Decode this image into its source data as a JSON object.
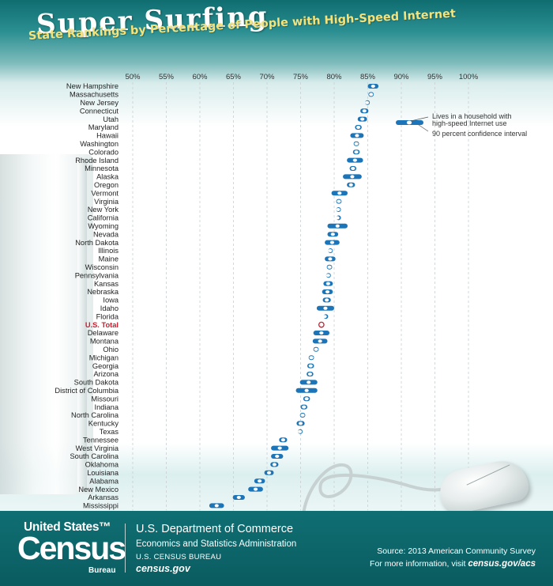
{
  "header": {
    "title": "Super Surfing",
    "subtitle": "State Rankings by Percentage of People with High-Speed Internet"
  },
  "legend": {
    "estimate_label_line1": "Lives in a household with",
    "estimate_label_line2": "high-speed Internet use",
    "ci_label": "90 percent confidence interval"
  },
  "colors": {
    "bar": "#1b75b8",
    "point_fill": "#ffffff",
    "us_total": "#c8202f",
    "state_label": "#222222",
    "gridline": "#c9cfd2",
    "footer_bg": "#0f6f73"
  },
  "chart_data": {
    "type": "scatter",
    "title": "Super Surfing",
    "subtitle": "State Rankings by Percentage of People with High-Speed Internet",
    "x_ticks": [
      "50%",
      "55%",
      "60%",
      "65%",
      "70%",
      "75%",
      "80%",
      "85%",
      "90%",
      "95%",
      "100%"
    ],
    "xlim": [
      50,
      100
    ],
    "grid": true,
    "legend_position": "top-right",
    "highlight": "U.S. Total",
    "states": [
      {
        "name": "New Hampshire",
        "value": 85.8,
        "low": 85.0,
        "high": 86.6
      },
      {
        "name": "Massachusetts",
        "value": 85.5,
        "low": 85.1,
        "high": 85.9
      },
      {
        "name": "New Jersey",
        "value": 84.9,
        "low": 84.6,
        "high": 85.2
      },
      {
        "name": "Connecticut",
        "value": 84.5,
        "low": 83.9,
        "high": 85.1
      },
      {
        "name": "Utah",
        "value": 84.2,
        "low": 83.5,
        "high": 84.9
      },
      {
        "name": "Maryland",
        "value": 83.6,
        "low": 83.1,
        "high": 84.1
      },
      {
        "name": "Hawaii",
        "value": 83.4,
        "low": 82.4,
        "high": 84.4
      },
      {
        "name": "Washington",
        "value": 83.3,
        "low": 82.9,
        "high": 83.7
      },
      {
        "name": "Colorado",
        "value": 83.3,
        "low": 82.8,
        "high": 83.8
      },
      {
        "name": "Rhode Island",
        "value": 83.1,
        "low": 81.9,
        "high": 84.3
      },
      {
        "name": "Minnesota",
        "value": 82.8,
        "low": 82.3,
        "high": 83.3
      },
      {
        "name": "Alaska",
        "value": 82.7,
        "low": 81.3,
        "high": 84.1
      },
      {
        "name": "Oregon",
        "value": 82.5,
        "low": 81.9,
        "high": 83.1
      },
      {
        "name": "Vermont",
        "value": 80.8,
        "low": 79.6,
        "high": 82.0
      },
      {
        "name": "Virginia",
        "value": 80.7,
        "low": 80.3,
        "high": 81.1
      },
      {
        "name": "New York",
        "value": 80.6,
        "low": 80.3,
        "high": 80.9
      },
      {
        "name": "California",
        "value": 80.5,
        "low": 80.3,
        "high": 80.7
      },
      {
        "name": "Wyoming",
        "value": 80.5,
        "low": 79.0,
        "high": 82.0
      },
      {
        "name": "Nevada",
        "value": 79.8,
        "low": 79.0,
        "high": 80.6
      },
      {
        "name": "North Dakota",
        "value": 79.7,
        "low": 78.6,
        "high": 80.8
      },
      {
        "name": "Illinois",
        "value": 79.4,
        "low": 79.1,
        "high": 79.7
      },
      {
        "name": "Maine",
        "value": 79.4,
        "low": 78.6,
        "high": 80.2
      },
      {
        "name": "Wisconsin",
        "value": 79.3,
        "low": 78.9,
        "high": 79.7
      },
      {
        "name": "Pennsylvania",
        "value": 79.1,
        "low": 78.8,
        "high": 79.4
      },
      {
        "name": "Kansas",
        "value": 79.1,
        "low": 78.4,
        "high": 79.8
      },
      {
        "name": "Nebraska",
        "value": 79.0,
        "low": 78.2,
        "high": 79.8
      },
      {
        "name": "Iowa",
        "value": 78.9,
        "low": 78.3,
        "high": 79.5
      },
      {
        "name": "Idaho",
        "value": 78.7,
        "low": 77.4,
        "high": 80.0
      },
      {
        "name": "Florida",
        "value": 78.6,
        "low": 78.4,
        "high": 78.8
      },
      {
        "name": "U.S. Total",
        "value": 78.1,
        "low": 78.0,
        "high": 78.2
      },
      {
        "name": "Delaware",
        "value": 78.1,
        "low": 76.9,
        "high": 79.3
      },
      {
        "name": "Montana",
        "value": 77.9,
        "low": 76.8,
        "high": 79.0
      },
      {
        "name": "Ohio",
        "value": 77.3,
        "low": 76.9,
        "high": 77.7
      },
      {
        "name": "Michigan",
        "value": 76.6,
        "low": 76.2,
        "high": 77.0
      },
      {
        "name": "Georgia",
        "value": 76.5,
        "low": 76.0,
        "high": 77.0
      },
      {
        "name": "Arizona",
        "value": 76.4,
        "low": 75.9,
        "high": 76.9
      },
      {
        "name": "South Dakota",
        "value": 76.2,
        "low": 74.9,
        "high": 77.5
      },
      {
        "name": "District of Columbia",
        "value": 75.9,
        "low": 74.3,
        "high": 77.5
      },
      {
        "name": "Missouri",
        "value": 75.9,
        "low": 75.4,
        "high": 76.4
      },
      {
        "name": "Indiana",
        "value": 75.5,
        "low": 75.0,
        "high": 76.0
      },
      {
        "name": "North Carolina",
        "value": 75.3,
        "low": 74.9,
        "high": 75.7
      },
      {
        "name": "Kentucky",
        "value": 75.0,
        "low": 74.4,
        "high": 75.6
      },
      {
        "name": "Texas",
        "value": 74.9,
        "low": 74.6,
        "high": 75.2
      },
      {
        "name": "Tennessee",
        "value": 72.4,
        "low": 71.8,
        "high": 73.0
      },
      {
        "name": "West Virginia",
        "value": 71.9,
        "low": 70.6,
        "high": 73.2
      },
      {
        "name": "South Carolina",
        "value": 71.5,
        "low": 70.6,
        "high": 72.4
      },
      {
        "name": "Oklahoma",
        "value": 71.1,
        "low": 70.5,
        "high": 71.7
      },
      {
        "name": "Louisiana",
        "value": 70.3,
        "low": 69.6,
        "high": 71.0
      },
      {
        "name": "Alabama",
        "value": 68.9,
        "low": 68.1,
        "high": 69.7
      },
      {
        "name": "New Mexico",
        "value": 68.3,
        "low": 67.2,
        "high": 69.4
      },
      {
        "name": "Arkansas",
        "value": 65.8,
        "low": 64.9,
        "high": 66.7
      },
      {
        "name": "Mississippi",
        "value": 62.5,
        "low": 61.4,
        "high": 63.6
      }
    ]
  },
  "footer": {
    "logo_top": "United States™",
    "logo_main": "Census",
    "logo_bottom": "Bureau",
    "department": "U.S. Department of Commerce",
    "administration": "Economics and Statistics Administration",
    "bureau": "U.S. CENSUS BUREAU",
    "website": "census.gov",
    "source": "Source: 2013 American Community Survey",
    "more_info_prefix": "For more information, visit",
    "more_info_url": "census.gov/acs"
  }
}
